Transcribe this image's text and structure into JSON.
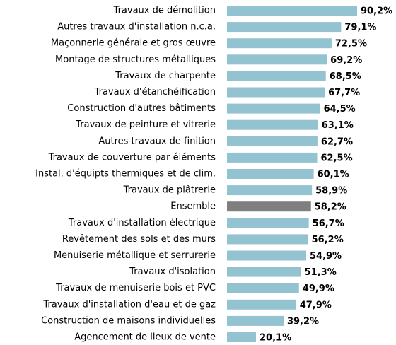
{
  "chart_data": {
    "type": "hbar",
    "categories": [
      "Travaux de démolition",
      "Autres travaux d'installation n.c.a.",
      "Maçonnerie générale et gros œuvre",
      "Montage de structures métalliques",
      "Travaux de charpente",
      "Travaux d'étanchéification",
      "Construction d'autres bâtiments",
      "Travaux de peinture et vitrerie",
      "Autres travaux de finition",
      "Travaux de couverture par éléments",
      "Instal. d'équipts thermiques et de clim.",
      "Travaux de plâtrerie",
      "Ensemble",
      "Travaux d'installation électrique",
      "Revêtement des sols et des murs",
      "Menuiserie métallique et serrurerie",
      "Travaux d'isolation",
      "Travaux de menuiserie bois et PVC",
      "Travaux d'installation d'eau et de gaz",
      "Construction de maisons individuelles",
      "Agencement de lieux de vente"
    ],
    "values": [
      90.2,
      79.1,
      72.5,
      69.2,
      68.5,
      67.7,
      64.5,
      63.1,
      62.7,
      62.5,
      60.1,
      58.9,
      58.2,
      56.7,
      56.2,
      54.9,
      51.3,
      49.9,
      47.9,
      39.2,
      20.1
    ],
    "value_labels": [
      "90,2%",
      "79,1%",
      "72,5%",
      "69,2%",
      "68,5%",
      "67,7%",
      "64,5%",
      "63,1%",
      "62,7%",
      "62,5%",
      "60,1%",
      "58,9%",
      "58,2%",
      "56,7%",
      "56,2%",
      "54,9%",
      "51,3%",
      "49,9%",
      "47,9%",
      "39,2%",
      "20,1%"
    ],
    "colors": [
      "#93c3d1",
      "#93c3d1",
      "#93c3d1",
      "#93c3d1",
      "#93c3d1",
      "#93c3d1",
      "#93c3d1",
      "#93c3d1",
      "#93c3d1",
      "#93c3d1",
      "#93c3d1",
      "#93c3d1",
      "#7f7f7f",
      "#93c3d1",
      "#93c3d1",
      "#93c3d1",
      "#93c3d1",
      "#93c3d1",
      "#93c3d1",
      "#93c3d1",
      "#93c3d1"
    ],
    "xlim": [
      0,
      100
    ]
  }
}
